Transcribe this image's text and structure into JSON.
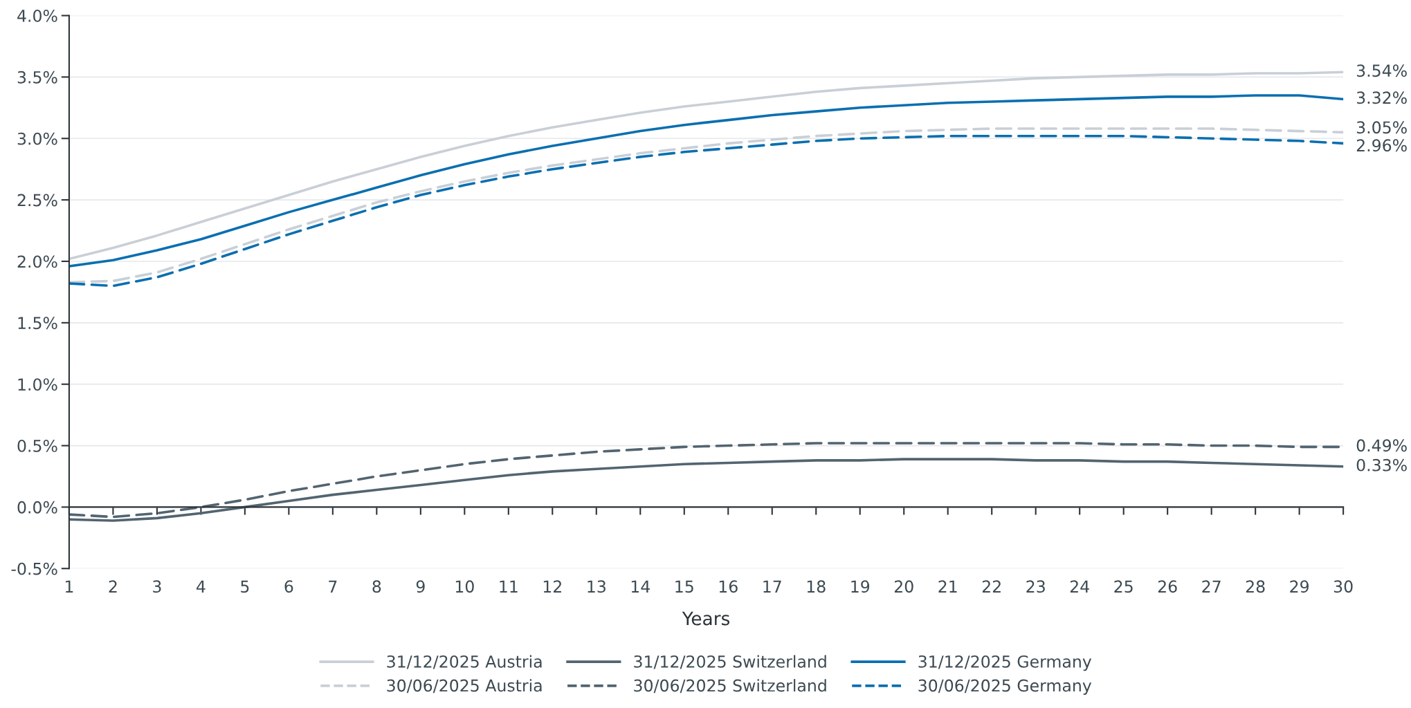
{
  "chart_data": {
    "type": "line",
    "xlabel": "Years",
    "x": [
      1,
      2,
      3,
      4,
      5,
      6,
      7,
      8,
      9,
      10,
      11,
      12,
      13,
      14,
      15,
      16,
      17,
      18,
      19,
      20,
      21,
      22,
      23,
      24,
      25,
      26,
      27,
      28,
      29,
      30
    ],
    "xlim": [
      1,
      30
    ],
    "xticks": [
      1,
      2,
      3,
      4,
      5,
      6,
      7,
      8,
      9,
      10,
      11,
      12,
      13,
      14,
      15,
      16,
      17,
      18,
      19,
      20,
      21,
      22,
      23,
      24,
      25,
      26,
      27,
      28,
      29,
      30
    ],
    "ylim": [
      -0.5,
      4.0
    ],
    "yticks": [
      {
        "value": -0.5,
        "label": "-0.5%"
      },
      {
        "value": 0.0,
        "label": "0.0%"
      },
      {
        "value": 0.5,
        "label": "0.5%"
      },
      {
        "value": 1.0,
        "label": "1.0%"
      },
      {
        "value": 1.5,
        "label": "1.5%"
      },
      {
        "value": 2.0,
        "label": "2.0%"
      },
      {
        "value": 2.5,
        "label": "2.5%"
      },
      {
        "value": 3.0,
        "label": "3.0%"
      },
      {
        "value": 3.5,
        "label": "3.5%"
      },
      {
        "value": 4.0,
        "label": "4.0%"
      }
    ],
    "grid": "y",
    "legend": "bottom",
    "series": [
      {
        "name": "31/12/2025 Austria",
        "color": "#c9cfd6",
        "line_style": "solid",
        "values": [
          2.02,
          2.11,
          2.21,
          2.32,
          2.43,
          2.54,
          2.65,
          2.75,
          2.85,
          2.94,
          3.02,
          3.09,
          3.15,
          3.21,
          3.26,
          3.3,
          3.34,
          3.38,
          3.41,
          3.43,
          3.45,
          3.47,
          3.49,
          3.5,
          3.51,
          3.52,
          3.52,
          3.53,
          3.53,
          3.54
        ],
        "value_labels": [
          null,
          null,
          null,
          null,
          null,
          null,
          null,
          null,
          null,
          null,
          null,
          null,
          null,
          null,
          null,
          null,
          null,
          null,
          null,
          null,
          null,
          null,
          null,
          null,
          null,
          null,
          null,
          null,
          null,
          "3.54%"
        ]
      },
      {
        "name": "31/12/2025 Switzerland",
        "color": "#526470",
        "line_style": "solid",
        "values": [
          -0.1,
          -0.11,
          -0.09,
          -0.05,
          0.0,
          0.05,
          0.1,
          0.14,
          0.18,
          0.22,
          0.26,
          0.29,
          0.31,
          0.33,
          0.35,
          0.36,
          0.37,
          0.38,
          0.38,
          0.39,
          0.39,
          0.39,
          0.38,
          0.38,
          0.37,
          0.37,
          0.36,
          0.35,
          0.34,
          0.33
        ],
        "value_labels": [
          null,
          null,
          null,
          null,
          null,
          null,
          null,
          null,
          null,
          null,
          null,
          null,
          null,
          null,
          null,
          null,
          null,
          null,
          null,
          null,
          null,
          null,
          null,
          null,
          null,
          null,
          null,
          null,
          null,
          "0.33%"
        ]
      },
      {
        "name": "31/12/2025 Germany",
        "color": "#0a6fb0",
        "line_style": "solid",
        "values": [
          1.96,
          2.01,
          2.09,
          2.18,
          2.29,
          2.4,
          2.5,
          2.6,
          2.7,
          2.79,
          2.87,
          2.94,
          3.0,
          3.06,
          3.11,
          3.15,
          3.19,
          3.22,
          3.25,
          3.27,
          3.29,
          3.3,
          3.31,
          3.32,
          3.33,
          3.34,
          3.34,
          3.35,
          3.35,
          3.32
        ],
        "value_labels": [
          null,
          null,
          null,
          null,
          null,
          null,
          null,
          null,
          null,
          null,
          null,
          null,
          null,
          null,
          null,
          null,
          null,
          null,
          null,
          null,
          null,
          null,
          null,
          null,
          null,
          null,
          null,
          null,
          null,
          "3.32%"
        ]
      },
      {
        "name": "30/06/2025 Austria",
        "color": "#c9cfd6",
        "line_style": "dashed",
        "values": [
          1.83,
          1.84,
          1.91,
          2.02,
          2.14,
          2.26,
          2.37,
          2.48,
          2.57,
          2.65,
          2.72,
          2.78,
          2.83,
          2.88,
          2.92,
          2.96,
          2.99,
          3.02,
          3.04,
          3.06,
          3.07,
          3.08,
          3.08,
          3.08,
          3.08,
          3.08,
          3.08,
          3.07,
          3.06,
          3.05
        ],
        "value_labels": [
          null,
          null,
          null,
          null,
          null,
          null,
          null,
          null,
          null,
          null,
          null,
          null,
          null,
          null,
          null,
          null,
          null,
          null,
          null,
          null,
          null,
          null,
          null,
          null,
          null,
          null,
          null,
          null,
          null,
          "3.05%"
        ]
      },
      {
        "name": "30/06/2025 Switzerland",
        "color": "#526470",
        "line_style": "dashed",
        "values": [
          -0.06,
          -0.08,
          -0.05,
          0.0,
          0.06,
          0.13,
          0.19,
          0.25,
          0.3,
          0.35,
          0.39,
          0.42,
          0.45,
          0.47,
          0.49,
          0.5,
          0.51,
          0.52,
          0.52,
          0.52,
          0.52,
          0.52,
          0.52,
          0.52,
          0.51,
          0.51,
          0.5,
          0.5,
          0.49,
          0.49
        ],
        "value_labels": [
          null,
          null,
          null,
          null,
          null,
          null,
          null,
          null,
          null,
          null,
          null,
          null,
          null,
          null,
          null,
          null,
          null,
          null,
          null,
          null,
          null,
          null,
          null,
          null,
          null,
          null,
          null,
          null,
          null,
          "0.49%"
        ]
      },
      {
        "name": "30/06/2025 Germany",
        "color": "#0a6fb0",
        "line_style": "dashed",
        "values": [
          1.82,
          1.8,
          1.87,
          1.98,
          2.1,
          2.22,
          2.33,
          2.44,
          2.54,
          2.62,
          2.69,
          2.75,
          2.8,
          2.85,
          2.89,
          2.92,
          2.95,
          2.98,
          3.0,
          3.01,
          3.02,
          3.02,
          3.02,
          3.02,
          3.02,
          3.01,
          3.0,
          2.99,
          2.98,
          2.96
        ],
        "value_labels": [
          null,
          null,
          null,
          null,
          null,
          null,
          null,
          null,
          null,
          null,
          null,
          null,
          null,
          null,
          null,
          null,
          null,
          null,
          null,
          null,
          null,
          null,
          null,
          null,
          null,
          null,
          null,
          null,
          null,
          "2.96%"
        ]
      }
    ]
  }
}
